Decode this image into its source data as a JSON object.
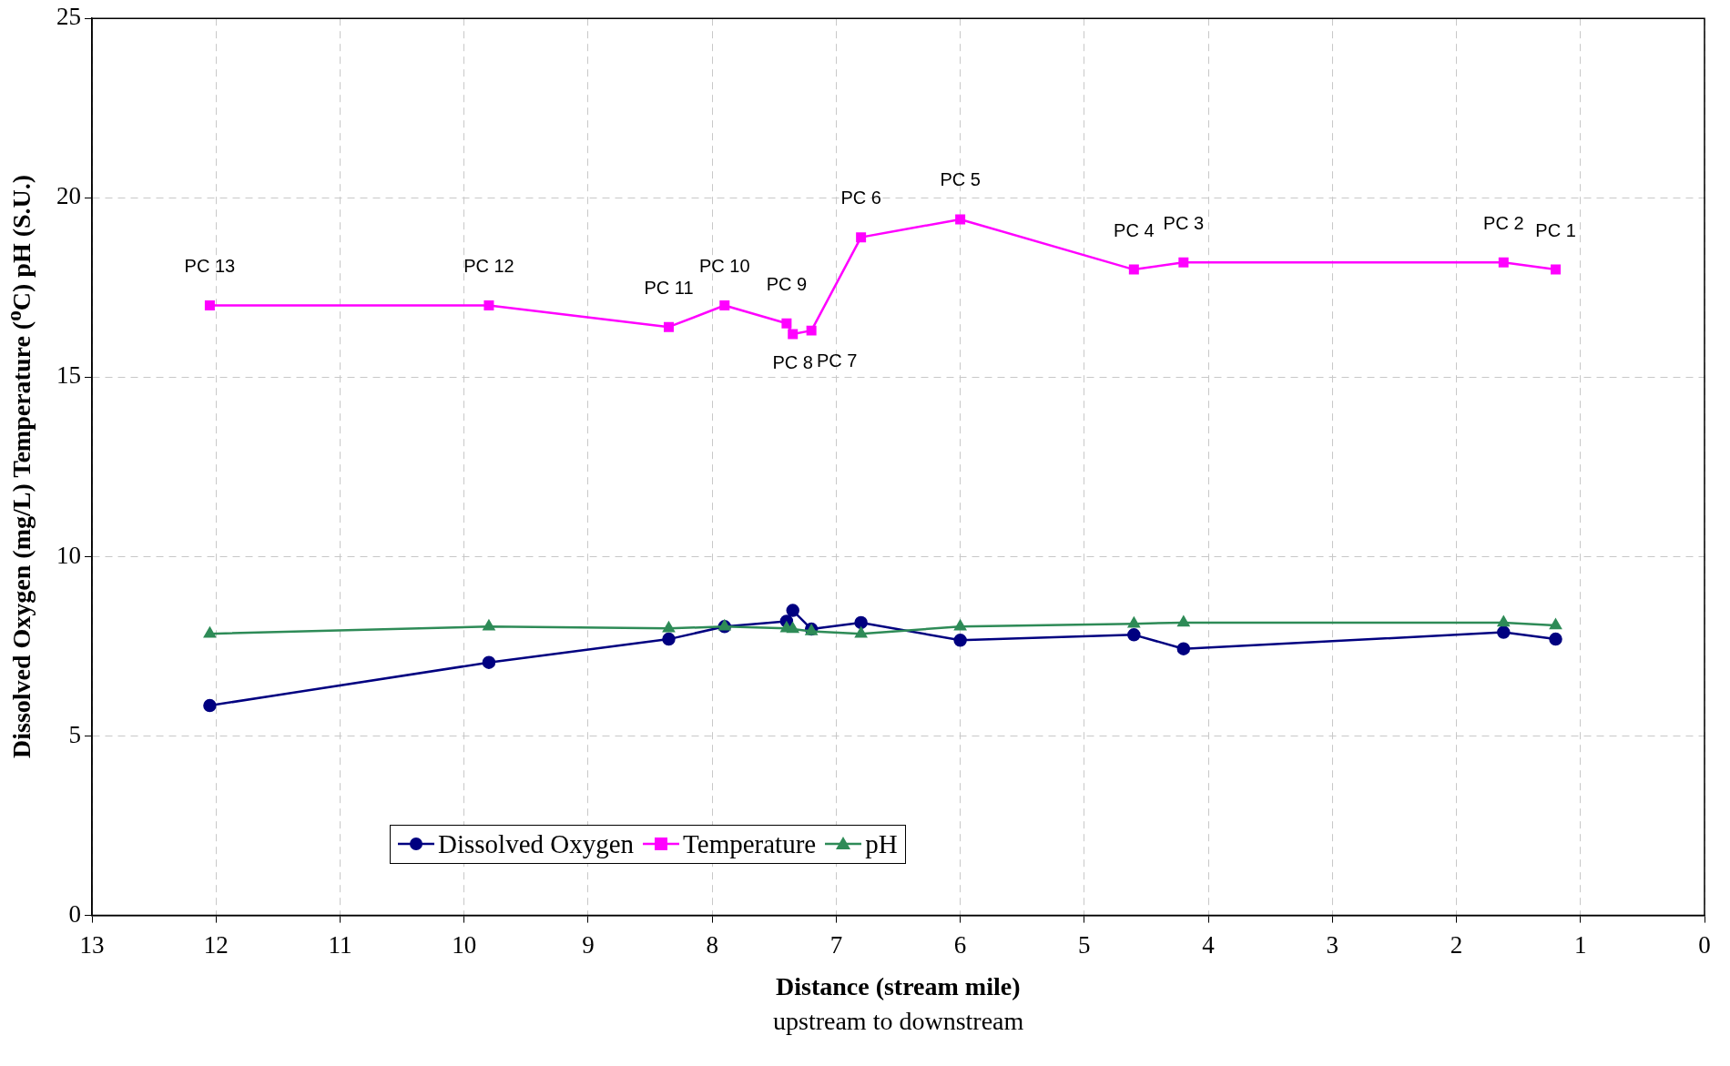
{
  "chart_data": {
    "type": "line",
    "xlabel": "Distance (stream mile)",
    "ylabel": "Dissolved Oxygen (mg/L) Temperature ($^{o}$C)  pH (S.U.)",
    "x": [
      12.05,
      9.8,
      8.35,
      7.9,
      7.4,
      7.35,
      7.2,
      6.8,
      6.0,
      4.6,
      4.2,
      1.62,
      1.2
    ],
    "series": [
      {
        "name": "Dissolved Oxygen",
        "color": "#000080",
        "marker": "circle",
        "values": [
          5.85,
          7.05,
          7.7,
          8.05,
          8.2,
          8.5,
          7.98,
          8.16,
          7.67,
          7.82,
          7.43,
          7.89,
          7.7
        ]
      },
      {
        "name": "Temperature",
        "color": "#ff00ff",
        "marker": "square",
        "values": [
          17.0,
          17.0,
          16.4,
          17.0,
          16.5,
          16.2,
          16.3,
          18.9,
          19.4,
          18.0,
          18.2,
          18.2,
          18.0
        ]
      },
      {
        "name": "pH",
        "color": "#2e8b57",
        "marker": "triangle",
        "values": [
          7.85,
          8.05,
          8.0,
          8.05,
          8.0,
          7.98,
          7.92,
          7.85,
          8.05,
          8.13,
          8.16,
          8.16,
          8.08
        ]
      }
    ],
    "xlim": [
      13,
      0
    ],
    "xticks": [
      13,
      12,
      11,
      10,
      9,
      8,
      7,
      6,
      5,
      4,
      3,
      2,
      1,
      0
    ],
    "ylim": [
      0,
      25
    ],
    "yticks": [
      0,
      5,
      10,
      15,
      20,
      25
    ],
    "grid": true,
    "legend": "bottom left",
    "line_style": "solid",
    "annotations": [
      {
        "text": "PC 13",
        "x": 12.05,
        "y": 17.0
      },
      {
        "text": "PC 12",
        "x": 9.8,
        "y": 17.0
      },
      {
        "text": "PC 11",
        "x": 8.35,
        "y": 16.4
      },
      {
        "text": "PC 10",
        "x": 7.9,
        "y": 17.0
      },
      {
        "text": "PC 9",
        "x": 7.4,
        "y": 16.5
      },
      {
        "text": "PC 8",
        "x": 7.35,
        "y": 16.2
      },
      {
        "text": "PC 7",
        "x": 7.2,
        "y": 16.3
      },
      {
        "text": "PC 6",
        "x": 6.8,
        "y": 18.9
      },
      {
        "text": "PC 5",
        "x": 6.0,
        "y": 19.4
      },
      {
        "text": "PC 4",
        "x": 4.6,
        "y": 18.0
      },
      {
        "text": "PC 3",
        "x": 4.2,
        "y": 18.2
      },
      {
        "text": "PC 2",
        "x": 1.62,
        "y": 18.2
      },
      {
        "text": "PC 1",
        "x": 1.2,
        "y": 18.0
      },
      "upstream to downstream"
    ]
  }
}
